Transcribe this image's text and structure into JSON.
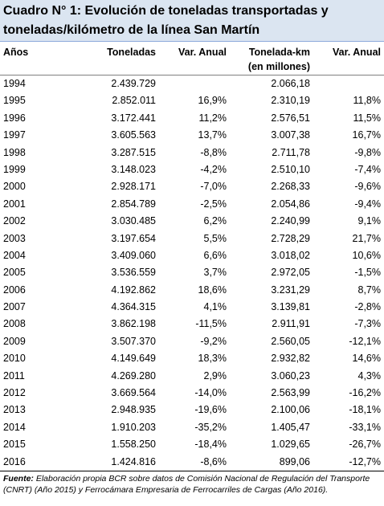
{
  "title": "Cuadro N° 1:  Evolución de toneladas transportadas y toneladas/kilómetro de la línea San Martín",
  "headers": {
    "year": "Años",
    "tons": "Toneladas",
    "var1": "Var. Anual",
    "tkm": "Tonelada-km",
    "tkm_unit": "(en millones)",
    "var2": "Var. Anual"
  },
  "rows": [
    {
      "year": "1994",
      "tons": "2.439.729",
      "var1": "",
      "tkm": "2.066,18",
      "var2": ""
    },
    {
      "year": "1995",
      "tons": "2.852.011",
      "var1": "16,9%",
      "tkm": "2.310,19",
      "var2": "11,8%"
    },
    {
      "year": "1996",
      "tons": "3.172.441",
      "var1": "11,2%",
      "tkm": "2.576,51",
      "var2": "11,5%"
    },
    {
      "year": "1997",
      "tons": "3.605.563",
      "var1": "13,7%",
      "tkm": "3.007,38",
      "var2": "16,7%"
    },
    {
      "year": "1998",
      "tons": "3.287.515",
      "var1": "-8,8%",
      "tkm": "2.711,78",
      "var2": "-9,8%"
    },
    {
      "year": "1999",
      "tons": "3.148.023",
      "var1": "-4,2%",
      "tkm": "2.510,10",
      "var2": "-7,4%"
    },
    {
      "year": "2000",
      "tons": "2.928.171",
      "var1": "-7,0%",
      "tkm": "2.268,33",
      "var2": "-9,6%"
    },
    {
      "year": "2001",
      "tons": "2.854.789",
      "var1": "-2,5%",
      "tkm": "2.054,86",
      "var2": "-9,4%"
    },
    {
      "year": "2002",
      "tons": "3.030.485",
      "var1": "6,2%",
      "tkm": "2.240,99",
      "var2": "9,1%"
    },
    {
      "year": "2003",
      "tons": "3.197.654",
      "var1": "5,5%",
      "tkm": "2.728,29",
      "var2": "21,7%"
    },
    {
      "year": "2004",
      "tons": "3.409.060",
      "var1": "6,6%",
      "tkm": "3.018,02",
      "var2": "10,6%"
    },
    {
      "year": "2005",
      "tons": "3.536.559",
      "var1": "3,7%",
      "tkm": "2.972,05",
      "var2": "-1,5%"
    },
    {
      "year": "2006",
      "tons": "4.192.862",
      "var1": "18,6%",
      "tkm": "3.231,29",
      "var2": "8,7%"
    },
    {
      "year": "2007",
      "tons": "4.364.315",
      "var1": "4,1%",
      "tkm": "3.139,81",
      "var2": "-2,8%"
    },
    {
      "year": "2008",
      "tons": "3.862.198",
      "var1": "-11,5%",
      "tkm": "2.911,91",
      "var2": "-7,3%"
    },
    {
      "year": "2009",
      "tons": "3.507.370",
      "var1": "-9,2%",
      "tkm": "2.560,05",
      "var2": "-12,1%"
    },
    {
      "year": "2010",
      "tons": "4.149.649",
      "var1": "18,3%",
      "tkm": "2.932,82",
      "var2": "14,6%"
    },
    {
      "year": "2011",
      "tons": "4.269.280",
      "var1": "2,9%",
      "tkm": "3.060,23",
      "var2": "4,3%"
    },
    {
      "year": "2012",
      "tons": "3.669.564",
      "var1": "-14,0%",
      "tkm": "2.563,99",
      "var2": "-16,2%"
    },
    {
      "year": "2013",
      "tons": "2.948.935",
      "var1": "-19,6%",
      "tkm": "2.100,06",
      "var2": "-18,1%"
    },
    {
      "year": "2014",
      "tons": "1.910.203",
      "var1": "-35,2%",
      "tkm": "1.405,47",
      "var2": "-33,1%"
    },
    {
      "year": "2015",
      "tons": "1.558.250",
      "var1": "-18,4%",
      "tkm": "1.029,65",
      "var2": "-26,7%"
    },
    {
      "year": "2016",
      "tons": "1.424.816",
      "var1": "-8,6%",
      "tkm": "899,06",
      "var2": "-12,7%"
    }
  ],
  "footer": {
    "label": "Fuente:",
    "text": " Elaboración propia BCR sobre datos de Comisión Nacional de Regulación del Transporte (CNRT) (Año 2015) y Ferrocámara Empresaria de Ferrocarriles de Cargas (Año 2016)."
  }
}
